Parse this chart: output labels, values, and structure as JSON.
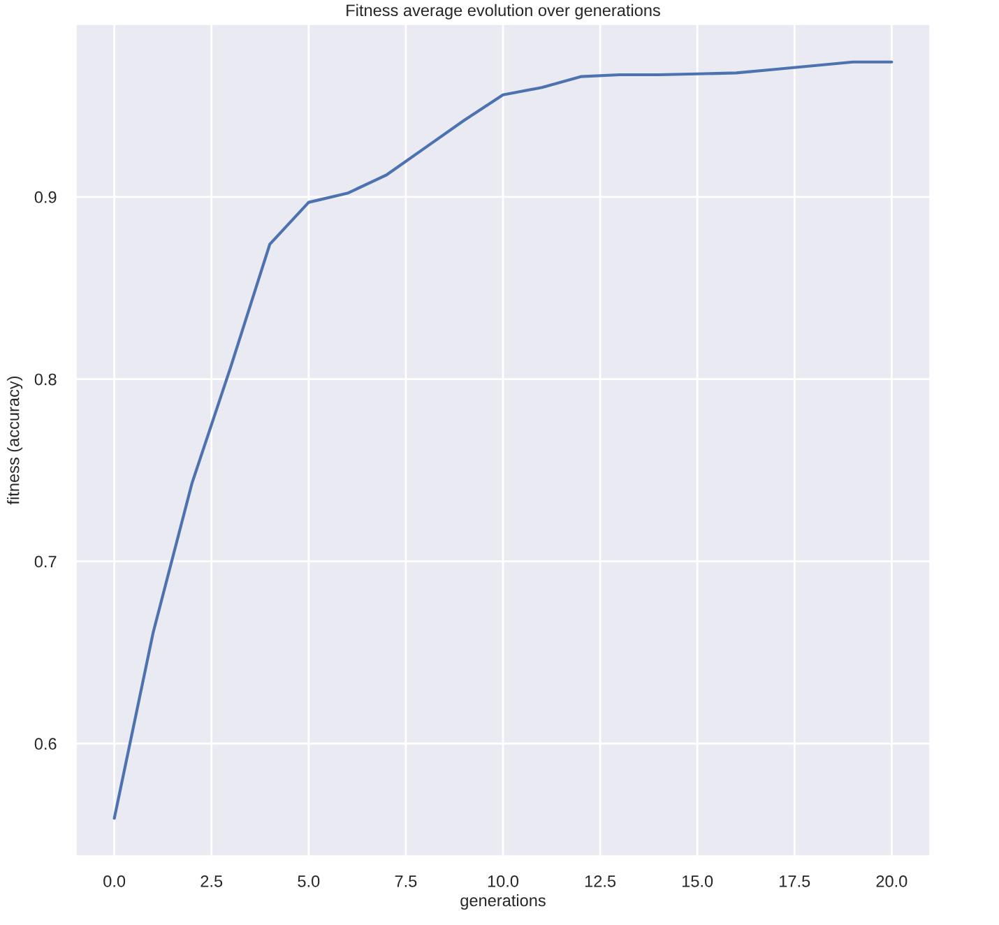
{
  "chart_data": {
    "type": "line",
    "title": "Fitness average evolution over generations",
    "xlabel": "generations",
    "ylabel": "fitness (accuracy)",
    "x": [
      0,
      1,
      2,
      3,
      4,
      5,
      6,
      7,
      8,
      9,
      10,
      11,
      12,
      13,
      14,
      15,
      16,
      17,
      18,
      19,
      20
    ],
    "series": [
      {
        "color": "#4c72b0",
        "values": [
          0.559,
          0.661,
          0.743,
          0.807,
          0.874,
          0.897,
          0.902,
          0.912,
          0.927,
          0.942,
          0.956,
          0.96,
          0.966,
          0.967,
          0.967,
          0.9675,
          0.968,
          0.97,
          0.972,
          0.974,
          0.974
        ]
      }
    ],
    "xlim": [
      -1,
      21
    ],
    "ylim": [
      0.538,
      0.995
    ],
    "xticks": [
      {
        "value": 0,
        "label": "0.0"
      },
      {
        "value": 2.5,
        "label": "2.5"
      },
      {
        "value": 5,
        "label": "5.0"
      },
      {
        "value": 7.5,
        "label": "7.5"
      },
      {
        "value": 10,
        "label": "10.0"
      },
      {
        "value": 12.5,
        "label": "12.5"
      },
      {
        "value": 15,
        "label": "15.0"
      },
      {
        "value": 17.5,
        "label": "17.5"
      },
      {
        "value": 20,
        "label": "20.0"
      }
    ],
    "yticks": [
      0.6,
      0.7,
      0.8,
      0.9
    ],
    "grid": true,
    "line_style": "solid"
  }
}
